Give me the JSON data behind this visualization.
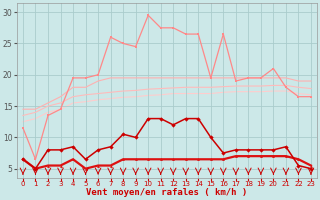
{
  "x": [
    0,
    1,
    2,
    3,
    4,
    5,
    6,
    7,
    8,
    9,
    10,
    11,
    12,
    13,
    14,
    15,
    16,
    17,
    18,
    19,
    20,
    21,
    22,
    23
  ],
  "line_jagged_pink": [
    11.5,
    6.5,
    13.5,
    14.5,
    19.5,
    19.5,
    20.0,
    26.0,
    25.0,
    24.5,
    29.5,
    27.5,
    27.5,
    26.5,
    26.5,
    19.5,
    26.5,
    19.0,
    19.5,
    19.5,
    21.0,
    18.0,
    16.5,
    16.5
  ],
  "line_smooth_top": [
    14.5,
    14.5,
    15.5,
    16.5,
    18.0,
    18.0,
    19.0,
    19.5,
    19.5,
    19.5,
    19.5,
    19.5,
    19.5,
    19.5,
    19.5,
    19.5,
    19.5,
    19.5,
    19.5,
    19.5,
    19.5,
    19.5,
    19.0,
    19.0
  ],
  "line_smooth_mid": [
    13.5,
    14.0,
    15.0,
    15.5,
    16.5,
    16.8,
    17.0,
    17.2,
    17.4,
    17.5,
    17.7,
    17.8,
    17.9,
    18.0,
    18.0,
    18.0,
    18.1,
    18.2,
    18.2,
    18.2,
    18.3,
    18.3,
    18.0,
    17.8
  ],
  "line_smooth_bot": [
    12.5,
    13.0,
    14.0,
    14.5,
    15.5,
    15.7,
    16.0,
    16.2,
    16.4,
    16.5,
    16.7,
    16.8,
    17.0,
    17.0,
    17.0,
    17.0,
    17.2,
    17.3,
    17.3,
    17.3,
    17.4,
    17.4,
    17.0,
    16.8
  ],
  "line_red_upper": [
    6.5,
    5.0,
    8.0,
    8.0,
    8.5,
    6.5,
    8.0,
    8.5,
    10.5,
    10.0,
    13.0,
    13.0,
    12.0,
    13.0,
    13.0,
    10.0,
    7.5,
    8.0,
    8.0,
    8.0,
    8.0,
    8.5,
    5.5,
    5.0
  ],
  "line_red_lower": [
    6.5,
    5.0,
    5.5,
    5.5,
    6.5,
    5.0,
    5.5,
    5.5,
    6.5,
    6.5,
    6.5,
    6.5,
    6.5,
    6.5,
    6.5,
    6.5,
    6.5,
    7.0,
    7.0,
    7.0,
    7.0,
    7.0,
    6.5,
    5.5
  ],
  "bg_color": "#cce8e8",
  "grid_color": "#aacccc",
  "color_jagged": "#ff8888",
  "color_smooth_top": "#ffb0b0",
  "color_smooth_mid": "#ffbbbb",
  "color_smooth_bot": "#ffcccc",
  "color_red_upper": "#cc0000",
  "color_red_lower": "#dd1111",
  "xlabel": "Vent moyen/en rafales ( km/h )",
  "ylim": [
    3.5,
    31.5
  ],
  "yticks": [
    5,
    10,
    15,
    20,
    25,
    30
  ]
}
